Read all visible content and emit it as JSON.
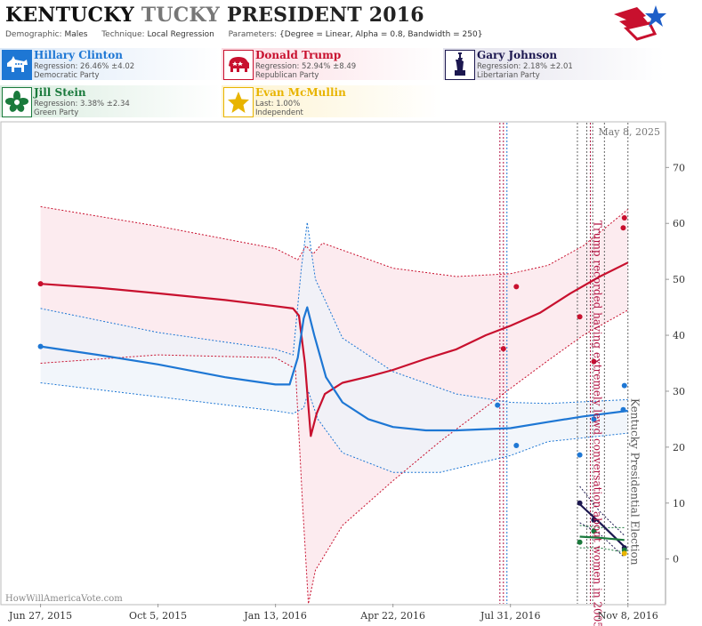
{
  "header": {
    "title_part1": "KENTUCKY",
    "title_part2": "TUCKY",
    "title_part3": "PRESIDENT 2016",
    "demographic_label": "Demographic:",
    "demographic_value": "Males",
    "technique_label": "Technique:",
    "technique_value": "Local Regression",
    "parameters_label": "Parameters:",
    "parameters_value": "{Degree = Linear, Alpha = 0.8, Bandwidth = 250}"
  },
  "candidates": [
    {
      "name": "Hillary Clinton",
      "line2": "Regression: 26.46% ±4.02",
      "line3": "Democratic Party",
      "color": "#1e77d4",
      "icon": "donkey-icon"
    },
    {
      "name": "Donald Trump",
      "line2": "Regression: 52.94% ±8.49",
      "line3": "Republican Party",
      "color": "#c8102e",
      "icon": "elephant-icon"
    },
    {
      "name": "Gary Johnson",
      "line2": "Regression: 2.18% ±2.01",
      "line3": "Libertarian Party",
      "color": "#1c1850",
      "icon": "statue-of-liberty-icon"
    },
    {
      "name": "Jill Stein",
      "line2": "Regression: 3.38% ±2.34",
      "line3": "Green Party",
      "color": "#1a7a3c",
      "icon": "flower-icon"
    },
    {
      "name": "Evan McMullin",
      "line2": "Last: 1.00%",
      "line3": "Independent",
      "color": "#e8b400",
      "icon": "star-icon"
    }
  ],
  "chart_data": {
    "type": "line",
    "date_label": "May 8, 2025",
    "watermark": "HowWillAmericaVote.com",
    "x_ticks": [
      {
        "date": "2015-06-27",
        "label": "Jun 27, 2015"
      },
      {
        "date": "2015-10-05",
        "label": "Oct 5, 2015"
      },
      {
        "date": "2016-01-13",
        "label": "Jan 13, 2016"
      },
      {
        "date": "2016-04-22",
        "label": "Apr 22, 2016"
      },
      {
        "date": "2016-07-31",
        "label": "Jul 31, 2016"
      },
      {
        "date": "2016-11-08",
        "label": "Nov 8, 2016"
      }
    ],
    "xlim": [
      "2015-05-25",
      "2016-12-10"
    ],
    "y_ticks": [
      0,
      10,
      20,
      30,
      40,
      50,
      60,
      70
    ],
    "ylim": [
      -8,
      78
    ],
    "grid": false,
    "annotations": [
      {
        "text": "Trump recorded having extremely lewd conversation about women in 2005",
        "date": "2016-10-07",
        "color": "#b01040"
      },
      {
        "text": "Kentucky Presidential Election",
        "date": "2016-11-08",
        "color": "#555555"
      }
    ],
    "event_lines": [
      {
        "date": "2016-07-22",
        "color": "#b01040",
        "style": "dashed"
      },
      {
        "date": "2016-07-25",
        "color": "#b01040",
        "style": "dashed"
      },
      {
        "date": "2016-07-28",
        "color": "#1e77d4",
        "style": "dashed"
      },
      {
        "date": "2016-09-26",
        "color": "#666666",
        "style": "dashed"
      },
      {
        "date": "2016-10-04",
        "color": "#666666",
        "style": "dashed"
      },
      {
        "date": "2016-10-07",
        "color": "#b01040",
        "style": "dashed"
      },
      {
        "date": "2016-10-09",
        "color": "#666666",
        "style": "dashed"
      },
      {
        "date": "2016-10-19",
        "color": "#666666",
        "style": "dashed"
      },
      {
        "date": "2016-11-08",
        "color": "#666666",
        "style": "dashed"
      }
    ],
    "series": [
      {
        "name": "Donald Trump",
        "color": "#c8102e",
        "band_fill": "#fbe4ea",
        "line": [
          [
            "2015-06-27",
            49.2
          ],
          [
            "2015-08-15",
            48.5
          ],
          [
            "2015-10-05",
            47.5
          ],
          [
            "2015-12-01",
            46.3
          ],
          [
            "2016-01-13",
            45.2
          ],
          [
            "2016-01-28",
            44.8
          ],
          [
            "2016-02-02",
            43.5
          ],
          [
            "2016-02-07",
            35.0
          ],
          [
            "2016-02-12",
            22.0
          ],
          [
            "2016-02-17",
            26.0
          ],
          [
            "2016-02-24",
            29.5
          ],
          [
            "2016-03-10",
            31.5
          ],
          [
            "2016-04-01",
            32.6
          ],
          [
            "2016-04-22",
            33.8
          ],
          [
            "2016-05-20",
            35.8
          ],
          [
            "2016-06-15",
            37.5
          ],
          [
            "2016-07-10",
            40.0
          ],
          [
            "2016-07-31",
            41.7
          ],
          [
            "2016-08-25",
            44.0
          ],
          [
            "2016-09-20",
            47.5
          ],
          [
            "2016-10-15",
            50.5
          ],
          [
            "2016-11-08",
            53.0
          ]
        ],
        "upper": [
          [
            "2015-06-27",
            63.0
          ],
          [
            "2015-10-05",
            59.5
          ],
          [
            "2016-01-13",
            55.5
          ],
          [
            "2016-02-01",
            53.5
          ],
          [
            "2016-02-08",
            56.0
          ],
          [
            "2016-02-14",
            54.5
          ],
          [
            "2016-02-22",
            56.5
          ],
          [
            "2016-04-22",
            52.0
          ],
          [
            "2016-06-15",
            50.5
          ],
          [
            "2016-07-31",
            51.0
          ],
          [
            "2016-09-01",
            52.5
          ],
          [
            "2016-10-01",
            56.0
          ],
          [
            "2016-11-08",
            62.5
          ]
        ],
        "lower": [
          [
            "2015-06-27",
            35.0
          ],
          [
            "2015-10-05",
            36.5
          ],
          [
            "2016-01-13",
            36.0
          ],
          [
            "2016-01-30",
            34.0
          ],
          [
            "2016-02-05",
            10.0
          ],
          [
            "2016-02-10",
            -8.0
          ],
          [
            "2016-02-16",
            -2.0
          ],
          [
            "2016-03-10",
            6.0
          ],
          [
            "2016-04-22",
            14.0
          ],
          [
            "2016-06-01",
            21.0
          ],
          [
            "2016-07-31",
            30.5
          ],
          [
            "2016-09-01",
            35.5
          ],
          [
            "2016-10-01",
            40.0
          ],
          [
            "2016-11-08",
            44.5
          ]
        ],
        "points": [
          [
            "2015-06-27",
            49.2
          ],
          [
            "2016-07-25",
            37.6
          ],
          [
            "2016-08-05",
            48.7
          ],
          [
            "2016-09-28",
            43.3
          ],
          [
            "2016-10-10",
            35.3
          ],
          [
            "2016-11-04",
            59.2
          ],
          [
            "2016-11-05",
            61.0
          ]
        ]
      },
      {
        "name": "Hillary Clinton",
        "color": "#1e77d4",
        "band_fill": "#eef3fa",
        "line": [
          [
            "2015-06-27",
            38.0
          ],
          [
            "2015-08-15",
            36.5
          ],
          [
            "2015-10-05",
            34.8
          ],
          [
            "2015-12-01",
            32.5
          ],
          [
            "2016-01-13",
            31.2
          ],
          [
            "2016-01-25",
            31.2
          ],
          [
            "2016-02-01",
            36.0
          ],
          [
            "2016-02-06",
            43.0
          ],
          [
            "2016-02-09",
            45.0
          ],
          [
            "2016-02-15",
            40.0
          ],
          [
            "2016-02-25",
            32.5
          ],
          [
            "2016-03-10",
            28.0
          ],
          [
            "2016-04-01",
            25.0
          ],
          [
            "2016-04-22",
            23.6
          ],
          [
            "2016-05-20",
            23.0
          ],
          [
            "2016-06-15",
            23.0
          ],
          [
            "2016-07-31",
            23.4
          ],
          [
            "2016-09-01",
            24.5
          ],
          [
            "2016-10-01",
            25.5
          ],
          [
            "2016-11-08",
            26.5
          ]
        ],
        "upper": [
          [
            "2015-06-27",
            44.8
          ],
          [
            "2015-10-05",
            40.5
          ],
          [
            "2016-01-13",
            37.5
          ],
          [
            "2016-01-28",
            36.5
          ],
          [
            "2016-02-04",
            52.0
          ],
          [
            "2016-02-09",
            60.2
          ],
          [
            "2016-02-16",
            50.0
          ],
          [
            "2016-03-10",
            39.5
          ],
          [
            "2016-04-22",
            33.5
          ],
          [
            "2016-06-15",
            29.5
          ],
          [
            "2016-07-31",
            28.0
          ],
          [
            "2016-09-01",
            27.8
          ],
          [
            "2016-11-08",
            28.5
          ]
        ],
        "lower": [
          [
            "2015-06-27",
            31.5
          ],
          [
            "2015-10-05",
            29.0
          ],
          [
            "2016-01-13",
            26.5
          ],
          [
            "2016-01-28",
            26.0
          ],
          [
            "2016-02-06",
            27.0
          ],
          [
            "2016-02-10",
            30.0
          ],
          [
            "2016-02-18",
            25.0
          ],
          [
            "2016-03-10",
            19.0
          ],
          [
            "2016-04-22",
            15.5
          ],
          [
            "2016-06-01",
            15.5
          ],
          [
            "2016-07-31",
            18.5
          ],
          [
            "2016-09-01",
            21.0
          ],
          [
            "2016-11-08",
            22.5
          ]
        ],
        "points": [
          [
            "2015-06-27",
            38.0
          ],
          [
            "2016-07-20",
            27.5
          ],
          [
            "2016-08-05",
            20.3
          ],
          [
            "2016-09-28",
            18.6
          ],
          [
            "2016-10-10",
            25.0
          ],
          [
            "2016-11-04",
            26.7
          ],
          [
            "2016-11-05",
            31.0
          ]
        ]
      },
      {
        "name": "Gary Johnson",
        "color": "#1c1850",
        "band_fill": "none",
        "line": [
          [
            "2016-09-28",
            9.8
          ],
          [
            "2016-10-15",
            6.5
          ],
          [
            "2016-11-05",
            2.2
          ]
        ],
        "upper": [
          [
            "2016-09-28",
            13.0
          ],
          [
            "2016-10-15",
            8.5
          ],
          [
            "2016-11-05",
            4.2
          ]
        ],
        "lower": [
          [
            "2016-09-28",
            6.5
          ],
          [
            "2016-10-15",
            4.5
          ],
          [
            "2016-11-05",
            0.3
          ]
        ],
        "points": [
          [
            "2016-09-28",
            10.0
          ],
          [
            "2016-10-10",
            7.0
          ],
          [
            "2016-11-05",
            2.0
          ]
        ]
      },
      {
        "name": "Jill Stein",
        "color": "#1a7a3c",
        "band_fill": "none",
        "line": [
          [
            "2016-09-28",
            4.0
          ],
          [
            "2016-10-15",
            3.8
          ],
          [
            "2016-11-05",
            3.4
          ]
        ],
        "upper": [
          [
            "2016-09-28",
            6.0
          ],
          [
            "2016-10-15",
            5.6
          ],
          [
            "2016-11-05",
            5.6
          ]
        ],
        "lower": [
          [
            "2016-09-28",
            2.0
          ],
          [
            "2016-10-15",
            2.0
          ],
          [
            "2016-11-05",
            1.2
          ]
        ],
        "points": [
          [
            "2016-09-28",
            3.0
          ],
          [
            "2016-10-10",
            5.0
          ],
          [
            "2016-11-05",
            1.6
          ]
        ]
      },
      {
        "name": "Evan McMullin",
        "color": "#e8b400",
        "band_fill": "none",
        "line": [],
        "upper": [],
        "lower": [],
        "points": [
          [
            "2016-11-05",
            1.0
          ]
        ]
      }
    ]
  }
}
